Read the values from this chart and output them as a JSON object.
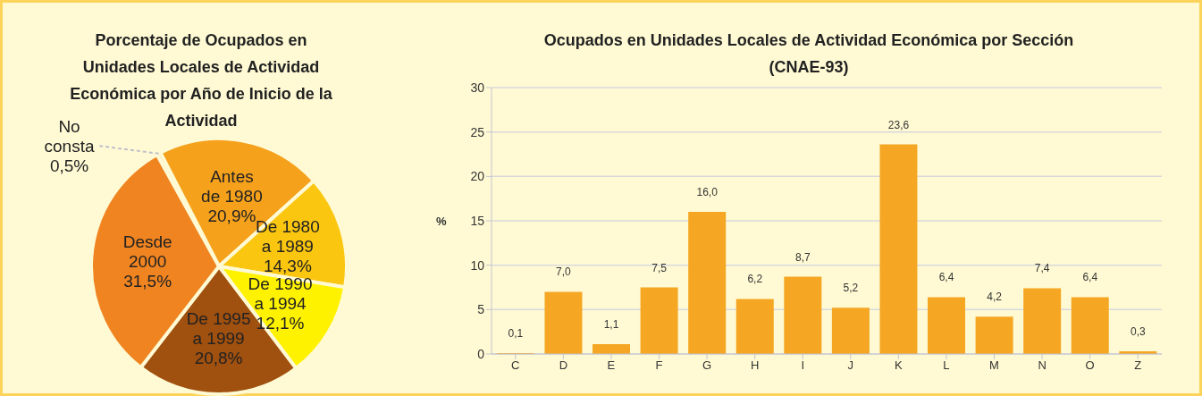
{
  "chart_data": [
    {
      "type": "pie",
      "title": "Porcentaje de Ocupados en Unidades Locales de Actividad Económica por Año de Inicio de la Actividad",
      "categories": [
        "No consta",
        "Antes de 1980",
        "De 1980 a 1989",
        "De 1990 a 1994",
        "De 1995 a 1999",
        "Desde 2000"
      ],
      "values": [
        0.5,
        20.9,
        14.3,
        12.1,
        20.8,
        31.5
      ],
      "colors": [
        "#f4a09c",
        "#f5a11c",
        "#fbc60f",
        "#fff200",
        "#a0500f",
        "#f08420"
      ],
      "value_labels": [
        "0,5%",
        "20,9%",
        "14,3%",
        "12,1%",
        "20,8%",
        "31,5%"
      ]
    },
    {
      "type": "bar",
      "title": "Ocupados en Unidades Locales de Actividad Económica por Sección (CNAE-93)",
      "ylabel": "%",
      "categories": [
        "C",
        "D",
        "E",
        "F",
        "G",
        "H",
        "I",
        "J",
        "K",
        "L",
        "M",
        "N",
        "O",
        "Z"
      ],
      "values": [
        0.1,
        7.0,
        1.1,
        7.5,
        16.0,
        6.2,
        8.7,
        5.2,
        23.6,
        6.4,
        4.2,
        7.4,
        6.4,
        0.3
      ],
      "color": "#f5a623",
      "value_labels": [
        "0,1",
        "7,0",
        "1,1",
        "7,5",
        "16,0",
        "6,2",
        "8,7",
        "5,2",
        "23,6",
        "6,4",
        "4,2",
        "7,4",
        "6,4",
        "0,3"
      ],
      "ylim": [
        0,
        30
      ],
      "yticks": [
        0,
        5,
        10,
        15,
        20,
        25,
        30
      ],
      "grid": "y"
    }
  ]
}
